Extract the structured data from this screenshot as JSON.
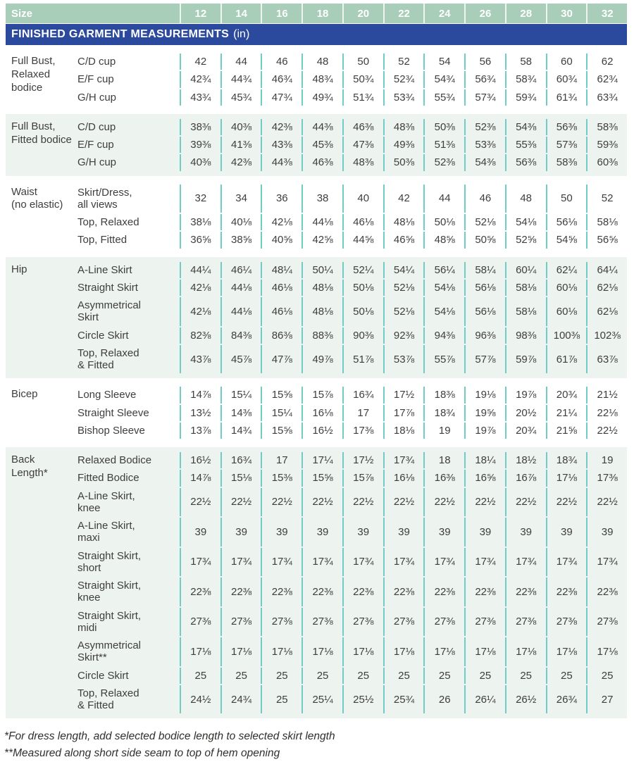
{
  "colors": {
    "sage": "#a8cdb9",
    "navy": "#2c4a9d",
    "mint": "#edf3ee",
    "teal": "#70ccc5",
    "text": "#3e3e3c"
  },
  "header": {
    "size_label": "Size",
    "sizes": [
      "12",
      "14",
      "16",
      "18",
      "20",
      "22",
      "24",
      "26",
      "28",
      "30",
      "32"
    ],
    "banner_bold": "FINISHED GARMENT MEASUREMENTS",
    "banner_unit": "(in)"
  },
  "sections": [
    {
      "id": "full-bust-relaxed-bodice",
      "label": "Full Bust,\nRelaxed\nbodice",
      "tone": "white",
      "rows": [
        {
          "name": "C/D cup",
          "values": [
            "42",
            "44",
            "46",
            "48",
            "50",
            "52",
            "54",
            "56",
            "58",
            "60",
            "62"
          ]
        },
        {
          "name": "E/F cup",
          "values": [
            "42¾",
            "44¾",
            "46¾",
            "48¾",
            "50¾",
            "52¾",
            "54¾",
            "56¾",
            "58¾",
            "60¾",
            "62¾"
          ]
        },
        {
          "name": "G/H cup",
          "values": [
            "43¾",
            "45¾",
            "47¾",
            "49¾",
            "51¾",
            "53¾",
            "55¾",
            "57¾",
            "59¾",
            "61¾",
            "63¾"
          ]
        }
      ]
    },
    {
      "id": "full-bust-fitted-bodice",
      "label": "Full Bust,\nFitted bodice",
      "tone": "mint",
      "rows": [
        {
          "name": "C/D cup",
          "values": [
            "38⅜",
            "40⅜",
            "42⅜",
            "44⅜",
            "46⅜",
            "48⅜",
            "50⅜",
            "52⅜",
            "54⅜",
            "56⅜",
            "58⅜"
          ]
        },
        {
          "name": "E/F cup",
          "values": [
            "39⅜",
            "41⅜",
            "43⅜",
            "45⅜",
            "47⅜",
            "49⅜",
            "51⅜",
            "53⅜",
            "55⅜",
            "57⅜",
            "59⅜"
          ]
        },
        {
          "name": "G/H cup",
          "values": [
            "40⅜",
            "42⅜",
            "44⅜",
            "46⅜",
            "48⅜",
            "50⅜",
            "52⅜",
            "54⅜",
            "56⅜",
            "58⅜",
            "60⅜"
          ]
        }
      ]
    },
    {
      "id": "waist-no-elastic",
      "label": "Waist\n(no elastic)",
      "tone": "white",
      "rows": [
        {
          "name": "Skirt/Dress,\nall views",
          "values": [
            "32",
            "34",
            "36",
            "38",
            "40",
            "42",
            "44",
            "46",
            "48",
            "50",
            "52"
          ]
        },
        {
          "name": "Top, Relaxed",
          "values": [
            "38⅛",
            "40⅛",
            "42⅛",
            "44⅛",
            "46⅛",
            "48⅛",
            "50⅛",
            "52⅛",
            "54⅛",
            "56⅛",
            "58⅛"
          ]
        },
        {
          "name": "Top, Fitted",
          "values": [
            "36⅝",
            "38⅝",
            "40⅝",
            "42⅝",
            "44⅝",
            "46⅝",
            "48⅝",
            "50⅝",
            "52⅝",
            "54⅝",
            "56⅝"
          ]
        }
      ]
    },
    {
      "id": "hip",
      "label": "Hip",
      "tone": "mint",
      "rows": [
        {
          "name": "A-Line Skirt",
          "values": [
            "44¼",
            "46¼",
            "48¼",
            "50¼",
            "52¼",
            "54¼",
            "56¼",
            "58¼",
            "60¼",
            "62¼",
            "64¼"
          ]
        },
        {
          "name": "Straight Skirt",
          "values": [
            "42⅛",
            "44⅛",
            "46⅛",
            "48⅛",
            "50⅛",
            "52⅛",
            "54⅛",
            "56⅛",
            "58⅛",
            "60⅛",
            "62⅛"
          ]
        },
        {
          "name": "Asymmetrical\nSkirt",
          "values": [
            "42⅛",
            "44⅛",
            "46⅛",
            "48⅛",
            "50⅛",
            "52⅛",
            "54⅛",
            "56⅛",
            "58⅛",
            "60⅛",
            "62⅛"
          ]
        },
        {
          "name": "Circle Skirt",
          "values": [
            "82⅜",
            "84⅜",
            "86⅜",
            "88⅜",
            "90⅜",
            "92⅜",
            "94⅜",
            "96⅜",
            "98⅜",
            "100⅜",
            "102⅜"
          ]
        },
        {
          "name": "Top, Relaxed\n& Fitted",
          "values": [
            "43⅞",
            "45⅞",
            "47⅞",
            "49⅞",
            "51⅞",
            "53⅞",
            "55⅞",
            "57⅞",
            "59⅞",
            "61⅞",
            "63⅞"
          ]
        }
      ]
    },
    {
      "id": "bicep",
      "label": "Bicep",
      "tone": "white",
      "rows": [
        {
          "name": "Long Sleeve",
          "values": [
            "14⅞",
            "15¼",
            "15⅝",
            "15⅞",
            "16¾",
            "17½",
            "18⅜",
            "19⅛",
            "19⅞",
            "20¾",
            "21½"
          ]
        },
        {
          "name": "Straight Sleeve",
          "values": [
            "13½",
            "14⅜",
            "15¼",
            "16⅛",
            "17",
            "17⅞",
            "18¾",
            "19⅝",
            "20½",
            "21¼",
            "22⅛"
          ]
        },
        {
          "name": "Bishop Sleeve",
          "values": [
            "13⅞",
            "14¾",
            "15⅝",
            "16½",
            "17⅜",
            "18⅛",
            "19",
            "19⅞",
            "20¾",
            "21⅝",
            "22½"
          ]
        }
      ]
    },
    {
      "id": "back-length",
      "label": "Back\nLength*",
      "tone": "mint",
      "rows": [
        {
          "name": "Relaxed Bodice",
          "values": [
            "16½",
            "16¾",
            "17",
            "17¼",
            "17½",
            "17¾",
            "18",
            "18¼",
            "18½",
            "18¾",
            "19"
          ]
        },
        {
          "name": "Fitted Bodice",
          "values": [
            "14⅞",
            "15⅛",
            "15⅜",
            "15⅝",
            "15⅞",
            "16⅛",
            "16⅜",
            "16⅝",
            "16⅞",
            "17⅛",
            "17⅜"
          ]
        },
        {
          "name": "A-Line Skirt,\nknee",
          "values": [
            "22½",
            "22½",
            "22½",
            "22½",
            "22½",
            "22½",
            "22½",
            "22½",
            "22½",
            "22½",
            "22½"
          ]
        },
        {
          "name": "A-Line Skirt,\nmaxi",
          "values": [
            "39",
            "39",
            "39",
            "39",
            "39",
            "39",
            "39",
            "39",
            "39",
            "39",
            "39"
          ]
        },
        {
          "name": "Straight Skirt,\nshort",
          "values": [
            "17¾",
            "17¾",
            "17¾",
            "17¾",
            "17¾",
            "17¾",
            "17¾",
            "17¾",
            "17¾",
            "17¾",
            "17¾"
          ]
        },
        {
          "name": "Straight Skirt,\nknee",
          "values": [
            "22⅜",
            "22⅜",
            "22⅜",
            "22⅜",
            "22⅜",
            "22⅜",
            "22⅜",
            "22⅜",
            "22⅜",
            "22⅜",
            "22⅜"
          ]
        },
        {
          "name": "Straight Skirt,\nmidi",
          "values": [
            "27⅜",
            "27⅜",
            "27⅜",
            "27⅜",
            "27⅜",
            "27⅜",
            "27⅜",
            "27⅜",
            "27⅜",
            "27⅜",
            "27⅜"
          ]
        },
        {
          "name": "Asymmetrical\nSkirt**",
          "values": [
            "17⅛",
            "17⅛",
            "17⅛",
            "17⅛",
            "17⅛",
            "17⅛",
            "17⅛",
            "17⅛",
            "17⅛",
            "17⅛",
            "17⅛"
          ]
        },
        {
          "name": "Circle Skirt",
          "values": [
            "25",
            "25",
            "25",
            "25",
            "25",
            "25",
            "25",
            "25",
            "25",
            "25",
            "25"
          ]
        },
        {
          "name": "Top, Relaxed\n& Fitted",
          "values": [
            "24½",
            "24¾",
            "25",
            "25¼",
            "25½",
            "25¾",
            "26",
            "26¼",
            "26½",
            "26¾",
            "27"
          ]
        }
      ]
    }
  ],
  "footnotes": [
    "*For dress length, add selected bodice length to selected skirt length",
    "**Measured along short side seam to top of hem opening"
  ]
}
